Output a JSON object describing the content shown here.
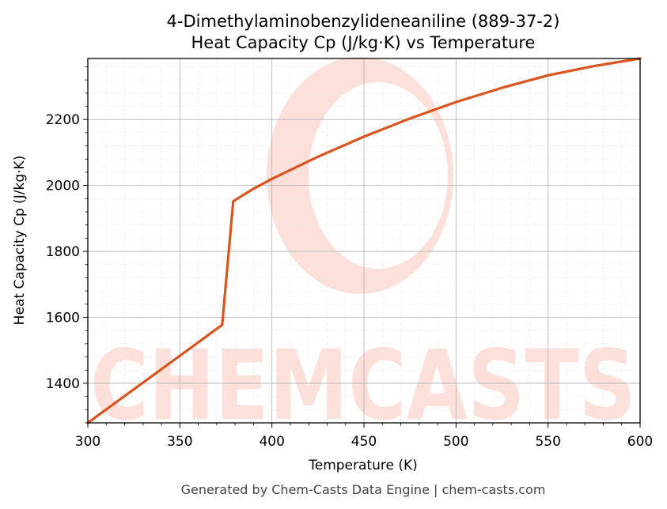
{
  "chart_data": {
    "type": "line",
    "title": "4-Dimethylaminobenzylideneaniline (889-37-2)",
    "subtitle": "Heat Capacity Cp (J/kg·K) vs Temperature",
    "xlabel": "Temperature (K)",
    "ylabel": "Heat Capacity Cp (J/kg·K)",
    "xlim": [
      300,
      600
    ],
    "ylim": [
      1280,
      2385
    ],
    "xticks": [
      "300",
      "350",
      "400",
      "450",
      "500",
      "550",
      "600"
    ],
    "yticks": [
      "1400",
      "1600",
      "1800",
      "2000",
      "2200"
    ],
    "grid": true,
    "line_color": "#d9541e",
    "series": [
      {
        "x": [
          300,
          373,
          379,
          390,
          400,
          425,
          450,
          475,
          500,
          525,
          550,
          575,
          600
        ],
        "y": [
          1280,
          1577,
          1952,
          1990,
          2020,
          2087,
          2148,
          2203,
          2253,
          2296,
          2334,
          2362,
          2385
        ]
      }
    ]
  },
  "watermark": {
    "text": "CHEMCASTS",
    "color": "#fde0da"
  },
  "footer": "Generated by Chem-Casts Data Engine | chem-casts.com"
}
